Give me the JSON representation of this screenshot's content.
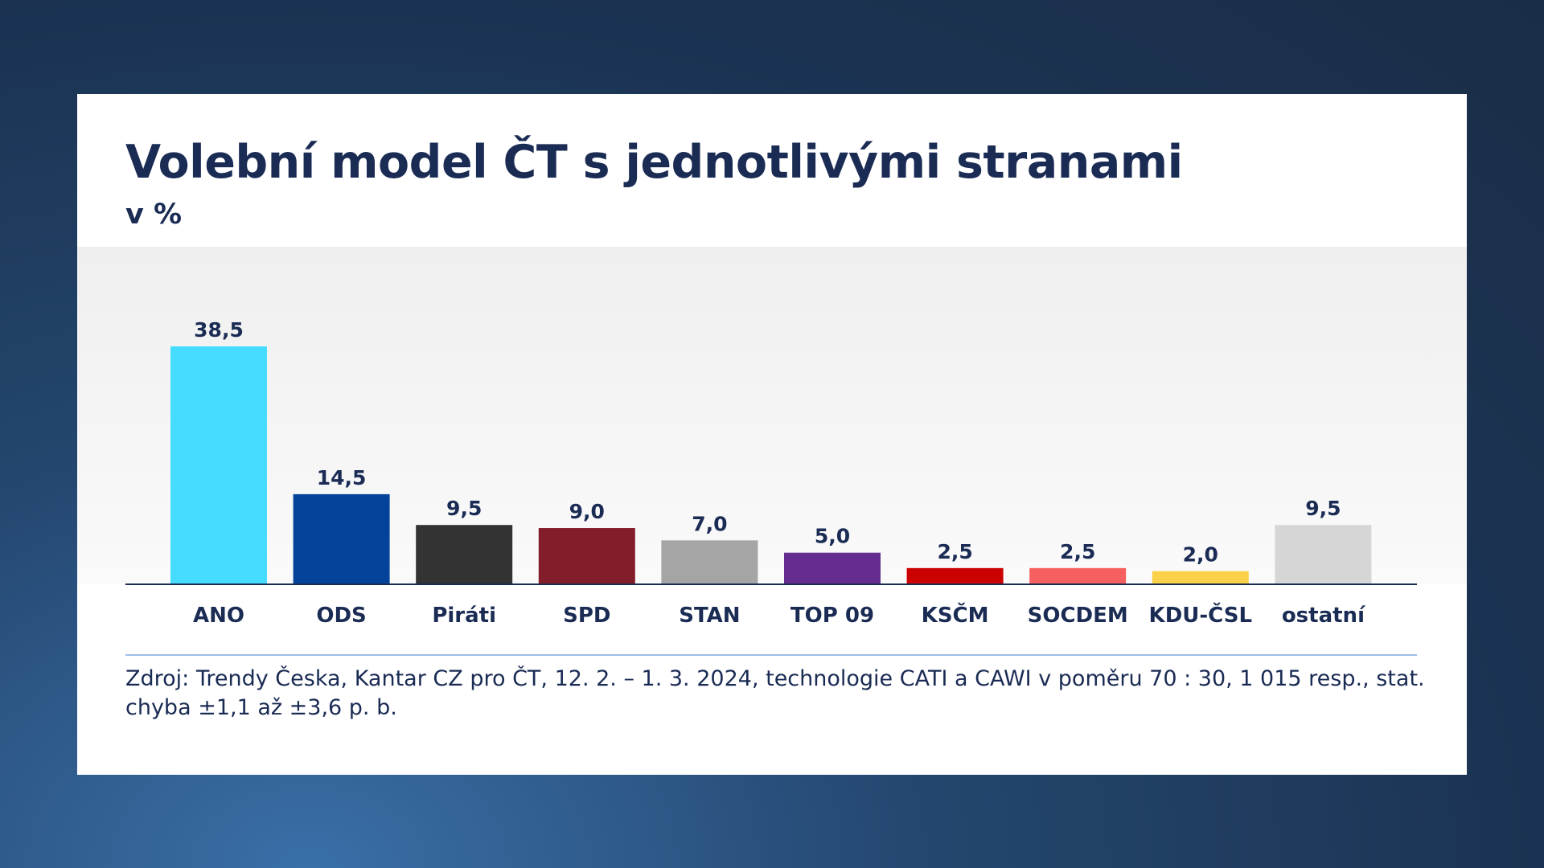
{
  "chart_data": {
    "type": "bar",
    "title": "Volební model ČT s jednotlivými stranami",
    "subtitle": "v %",
    "categories": [
      "ANO",
      "ODS",
      "Piráti",
      "SPD",
      "STAN",
      "TOP 09",
      "KSČM",
      "SOCDEM",
      "KDU-ČSL",
      "ostatní"
    ],
    "values": [
      38.5,
      14.5,
      9.5,
      9.0,
      7.0,
      5.0,
      2.5,
      2.5,
      2.0,
      9.5
    ],
    "value_labels": [
      "38,5",
      "14,5",
      "9,5",
      "9,0",
      "7,0",
      "5,0",
      "2,5",
      "2,5",
      "2,0",
      "9,5"
    ],
    "colors": [
      "#45dcfe",
      "#034399",
      "#333333",
      "#811e29",
      "#a5a5a5",
      "#652d90",
      "#cc0101",
      "#f55f5f",
      "#fbd14a",
      "#d6d6d6"
    ],
    "ylim": [
      0,
      38.5
    ],
    "grid": false,
    "legend": "none",
    "source": "Zdroj: Trendy Česka, Kantar CZ pro ČT, 12. 2. – 1. 3. 2024, technologie CATI a CAWI v poměru 70 : 30, 1 015 resp., stat. chyba ±1,1 až ±3,6 p. b."
  }
}
